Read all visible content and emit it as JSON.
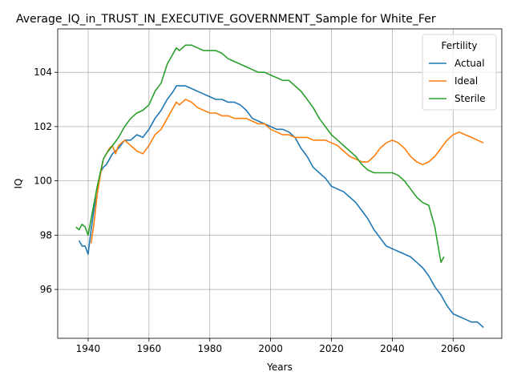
{
  "chart_data": {
    "type": "line",
    "title": "Average_IQ_in_TRUST_IN_EXECUTIVE_GOVERNMENT_Sample for White_Fer",
    "xlabel": "Years",
    "ylabel": "IQ",
    "xlim": [
      1930,
      2076
    ],
    "ylim": [
      94.2,
      105.6
    ],
    "xticks": [
      1940,
      1960,
      1980,
      2000,
      2020,
      2040,
      2060
    ],
    "yticks": [
      96,
      98,
      100,
      102,
      104
    ],
    "grid": true,
    "legend": {
      "title": "Fertility",
      "placement": "top-right"
    },
    "colors": {
      "Actual": "#1f77b4",
      "Ideal": "#ff7f0e",
      "Sterile": "#2ca02c"
    },
    "series": [
      {
        "name": "Actual",
        "x": [
          1937,
          1938,
          1939,
          1940,
          1941,
          1942,
          1943,
          1944,
          1945,
          1946,
          1948,
          1950,
          1952,
          1954,
          1956,
          1958,
          1960,
          1962,
          1964,
          1966,
          1968,
          1969,
          1972,
          1974,
          1976,
          1978,
          1980,
          1982,
          1984,
          1986,
          1988,
          1990,
          1992,
          1994,
          1996,
          1998,
          2000,
          2002,
          2004,
          2006,
          2008,
          2010,
          2012,
          2014,
          2016,
          2018,
          2020,
          2022,
          2024,
          2026,
          2028,
          2030,
          2032,
          2034,
          2036,
          2038,
          2040,
          2042,
          2044,
          2046,
          2048,
          2050,
          2052,
          2054,
          2056,
          2058,
          2060,
          2062,
          2064,
          2066,
          2068,
          2070
        ],
        "y": [
          97.8,
          97.6,
          97.6,
          97.3,
          98.2,
          99.0,
          99.5,
          100.3,
          100.5,
          100.6,
          101.0,
          101.2,
          101.5,
          101.5,
          101.7,
          101.6,
          101.9,
          102.3,
          102.6,
          103.0,
          103.3,
          103.5,
          103.5,
          103.4,
          103.3,
          103.2,
          103.1,
          103.0,
          103.0,
          102.9,
          102.9,
          102.8,
          102.6,
          102.3,
          102.2,
          102.1,
          102.0,
          101.9,
          101.9,
          101.8,
          101.6,
          101.2,
          100.9,
          100.5,
          100.3,
          100.1,
          99.8,
          99.7,
          99.6,
          99.4,
          99.2,
          98.9,
          98.6,
          98.2,
          97.9,
          97.6,
          97.5,
          97.4,
          97.3,
          97.2,
          97.0,
          96.8,
          96.5,
          96.1,
          95.8,
          95.4,
          95.1,
          95.0,
          94.9,
          94.8,
          94.8,
          94.6
        ]
      },
      {
        "name": "Ideal",
        "x": [
          1941,
          1942,
          1943,
          1944,
          1945,
          1946,
          1947,
          1948,
          1949,
          1950,
          1952,
          1954,
          1956,
          1958,
          1960,
          1962,
          1964,
          1966,
          1968,
          1969,
          1970,
          1972,
          1974,
          1976,
          1978,
          1980,
          1982,
          1984,
          1986,
          1988,
          1990,
          1992,
          1994,
          1996,
          1998,
          2000,
          2002,
          2004,
          2006,
          2008,
          2010,
          2012,
          2014,
          2016,
          2018,
          2020,
          2022,
          2024,
          2026,
          2028,
          2030,
          2032,
          2034,
          2036,
          2038,
          2040,
          2042,
          2044,
          2046,
          2048,
          2050,
          2052,
          2054,
          2056,
          2058,
          2060,
          2062,
          2064,
          2066,
          2068,
          2070
        ],
        "y": [
          97.7,
          98.5,
          99.5,
          100.2,
          100.8,
          101.0,
          101.2,
          101.3,
          101.0,
          101.3,
          101.5,
          101.3,
          101.1,
          101.0,
          101.3,
          101.7,
          101.9,
          102.3,
          102.7,
          102.9,
          102.8,
          103.0,
          102.9,
          102.7,
          102.6,
          102.5,
          102.5,
          102.4,
          102.4,
          102.3,
          102.3,
          102.3,
          102.2,
          102.1,
          102.1,
          101.9,
          101.8,
          101.7,
          101.7,
          101.6,
          101.6,
          101.6,
          101.5,
          101.5,
          101.5,
          101.4,
          101.3,
          101.1,
          100.9,
          100.8,
          100.7,
          100.7,
          100.9,
          101.2,
          101.4,
          101.5,
          101.4,
          101.2,
          100.9,
          100.7,
          100.6,
          100.7,
          100.9,
          101.2,
          101.5,
          101.7,
          101.8,
          101.7,
          101.6,
          101.5,
          101.4
        ]
      },
      {
        "name": "Sterile",
        "x": [
          1936,
          1937,
          1938,
          1939,
          1940,
          1941,
          1942,
          1943,
          1944,
          1945,
          1946,
          1948,
          1950,
          1952,
          1954,
          1956,
          1958,
          1960,
          1962,
          1964,
          1966,
          1968,
          1969,
          1970,
          1972,
          1974,
          1976,
          1978,
          1980,
          1982,
          1984,
          1986,
          1988,
          1990,
          1992,
          1994,
          1996,
          1998,
          2000,
          2002,
          2004,
          2006,
          2008,
          2010,
          2012,
          2014,
          2016,
          2018,
          2020,
          2022,
          2024,
          2026,
          2028,
          2030,
          2032,
          2034,
          2036,
          2038,
          2040,
          2042,
          2044,
          2046,
          2048,
          2050,
          2052,
          2054,
          2056,
          2057
        ],
        "y": [
          98.3,
          98.2,
          98.4,
          98.3,
          98.0,
          98.6,
          99.2,
          99.8,
          100.3,
          100.8,
          101.0,
          101.3,
          101.6,
          102.0,
          102.3,
          102.5,
          102.6,
          102.8,
          103.3,
          103.6,
          104.3,
          104.7,
          104.9,
          104.8,
          105.0,
          105.0,
          104.9,
          104.8,
          104.8,
          104.8,
          104.7,
          104.5,
          104.4,
          104.3,
          104.2,
          104.1,
          104.0,
          104.0,
          103.9,
          103.8,
          103.7,
          103.7,
          103.5,
          103.3,
          103.0,
          102.7,
          102.3,
          102.0,
          101.7,
          101.5,
          101.3,
          101.1,
          100.9,
          100.6,
          100.4,
          100.3,
          100.3,
          100.3,
          100.3,
          100.2,
          100.0,
          99.7,
          99.4,
          99.2,
          99.1,
          98.3,
          97.0,
          97.2
        ]
      }
    ]
  }
}
